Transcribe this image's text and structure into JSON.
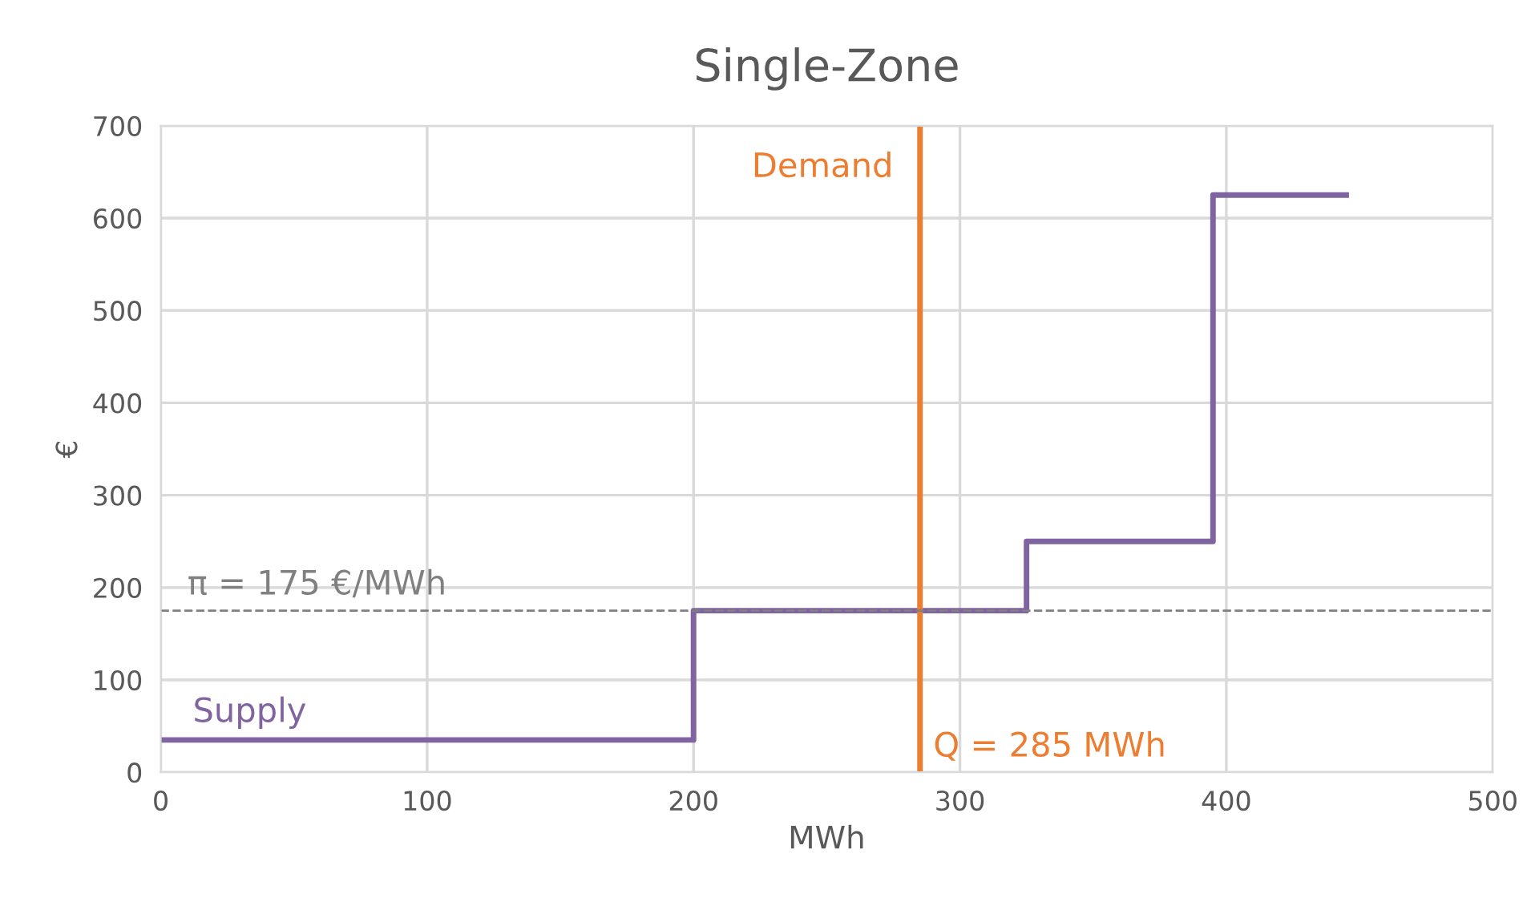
{
  "chart_data": {
    "type": "step",
    "title": "Single-Zone",
    "xlabel": "MWh",
    "ylabel": "€",
    "xlim": [
      0,
      500
    ],
    "xticks": [
      0,
      100,
      200,
      300,
      400,
      500
    ],
    "ylim": [
      0,
      700
    ],
    "yticks": [
      0,
      100,
      200,
      300,
      400,
      500,
      600,
      700
    ],
    "grid": true,
    "legend": false,
    "line_style": "solid",
    "marker": "none",
    "series": [
      {
        "name": "Supply",
        "color": "#8064a2",
        "x": [
          0,
          200,
          325,
          395,
          445
        ],
        "values": [
          35,
          175,
          250,
          625,
          625
        ]
      }
    ],
    "ref_lines": [
      {
        "axis": "x",
        "value": 285,
        "label": "Demand",
        "color": "#ed7d31",
        "line_style": "solid"
      },
      {
        "axis": "y",
        "value": 175,
        "label": "π = 175 €/MWh",
        "color": "#808080",
        "line_style": "dashed"
      }
    ],
    "annotations": [
      {
        "text": "Q = 285 MWh",
        "x": 285,
        "y": 0
      }
    ]
  }
}
